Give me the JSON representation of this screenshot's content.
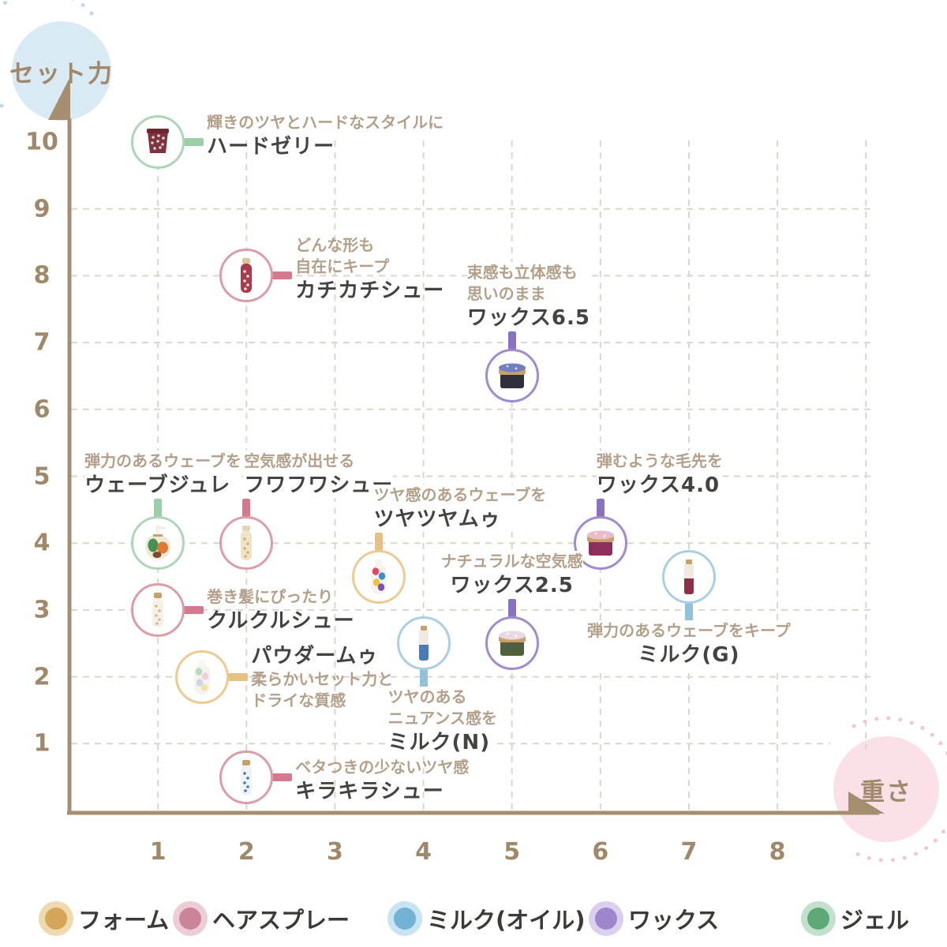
{
  "axes": {
    "y_axis": {
      "label": "セット力",
      "bubble_color": "#daeaf5",
      "dot_color": "#bcdaeb"
    },
    "x_axis": {
      "label": "重さ",
      "bubble_color": "#fbe1e7",
      "dot_color": "#f4c6d2"
    },
    "axis_color": "#a58e70",
    "grid_color": "#ddd5c9",
    "tick_color": "#a0896a"
  },
  "text_colors": {
    "desc": "#b3a08a",
    "name": "#454240"
  },
  "categories": {
    "フォーム": {
      "circle": "#ecca92",
      "connector": "#e7c183",
      "legend_dot": "#d5a659",
      "legend_halo": "#efd9ae"
    },
    "ヘアスプレー": {
      "circle": "#dc9dab",
      "connector": "#d5798f",
      "legend_dot": "#cb8398",
      "legend_halo": "#eccdd6"
    },
    "ミルク(オイル)": {
      "circle": "#abcfe2",
      "connector": "#92c2da",
      "legend_dot": "#72b2d3",
      "legend_halo": "#c8e3f2"
    },
    "ワックス": {
      "circle": "#a08bce",
      "connector": "#8a72c3",
      "legend_dot": "#9d86cb",
      "legend_halo": "#dacfee"
    },
    "ジェル": {
      "circle": "#aed5b5",
      "connector": "#9ccfa8",
      "legend_dot": "#5ca876",
      "legend_halo": "#c2e0cb"
    }
  },
  "legend": {
    "items": [
      "フォーム",
      "ヘアスプレー",
      "ミルク(オイル)",
      "ワックス",
      "ジェル"
    ]
  },
  "chart_data": {
    "type": "scatter",
    "xlabel": "重さ",
    "ylabel": "セット力",
    "xlim": [
      0,
      8.5
    ],
    "ylim": [
      0,
      10.5
    ],
    "x_ticks": [
      1,
      2,
      3,
      4,
      5,
      6,
      7,
      8
    ],
    "y_ticks": [
      1,
      2,
      3,
      4,
      5,
      6,
      7,
      8,
      9,
      10
    ],
    "grid": "dashed",
    "legend_position": "bottom",
    "points": [
      {
        "name": "ハードゼリー",
        "desc": [
          "輝きのツヤとハードなスタイルに"
        ],
        "category": "ジェル",
        "x": 1,
        "y": 10,
        "label": {
          "side": "right",
          "dy": -8
        },
        "icon": {
          "type": "tub",
          "body": "#82333b",
          "rim": "#6d262e",
          "dots": "#c9d9e6"
        }
      },
      {
        "name": "カチカチシュー",
        "desc": [
          "どんな形も",
          "自在にキープ"
        ],
        "category": "ヘアスプレー",
        "x": 2,
        "y": 8,
        "label": {
          "side": "right",
          "dy": -8
        },
        "icon": {
          "type": "spray",
          "body": "#a93b4c",
          "pattern": "#f0e3e3",
          "cap": "#d9c49c"
        }
      },
      {
        "name": "ワックス6.5",
        "desc": [
          "束感も立体感も",
          "思いのまま"
        ],
        "category": "ワックス",
        "x": 5,
        "y": 6.5,
        "label": {
          "side": "top",
          "align": "left",
          "dx": -57
        },
        "icon": {
          "type": "jar",
          "body": "#30303c",
          "lid": "#c9a06b",
          "top": "#6f7fc0"
        }
      },
      {
        "name": "ウェーブジュレ",
        "desc": [
          "弾力のあるウェーブを"
        ],
        "category": "ジェル",
        "x": 1,
        "y": 4,
        "label": {
          "side": "top",
          "align": "left",
          "dx": -93
        },
        "icon": {
          "type": "pump",
          "body": "#df7a33",
          "accent": "#47904f",
          "cap": "#f2f0ea"
        }
      },
      {
        "name": "フワフワシュー",
        "desc": [
          "空気感が出せる"
        ],
        "category": "ヘアスプレー",
        "x": 2,
        "y": 4,
        "label": {
          "side": "top",
          "align": "left",
          "dx": -3
        },
        "icon": {
          "type": "spray",
          "body": "#efe3c8",
          "pattern": "#d8b269",
          "cap": "#e4d5b4"
        }
      },
      {
        "name": "ツヤツヤムゥ",
        "desc": [
          "ツヤ感のあるウェーブを"
        ],
        "category": "フォーム",
        "x": 3.5,
        "y": 3.5,
        "label": {
          "side": "top",
          "align": "left",
          "dx": -7
        },
        "icon": {
          "type": "bottle",
          "patches": [
            "#dd4a66",
            "#3f8fd0",
            "#efc13f",
            "#7a52a8"
          ],
          "cap": "#f4f4f2"
        }
      },
      {
        "name": "ワックス4.0",
        "desc": [
          "弾むような毛先を"
        ],
        "category": "ワックス",
        "x": 6,
        "y": 4,
        "label": {
          "side": "top",
          "align": "left",
          "dx": -5
        },
        "icon": {
          "type": "jar",
          "body": "#8d2f5d",
          "lid": "#c9a06b",
          "top": "#e9bccb"
        }
      },
      {
        "name": "クルクルシュー",
        "desc": [
          "巻き髪にぴったり"
        ],
        "category": "ヘアスプレー",
        "x": 1,
        "y": 3,
        "label": {
          "side": "right",
          "dy": 0
        },
        "icon": {
          "type": "spray",
          "body": "#f4f1ea",
          "pattern": "#dfb876",
          "cap": "#c9a06b"
        }
      },
      {
        "name": "ミルク(G)",
        "desc": [
          "弾力のあるウェーブをキープ"
        ],
        "category": "ミルク(オイル)",
        "x": 7,
        "y": 3.5,
        "label": {
          "side": "bottom",
          "align": "center",
          "dx": 0
        },
        "icon": {
          "type": "milk",
          "top": "#f1ebdf",
          "bottom": "#8e3048",
          "cap": "#c9a06b"
        }
      },
      {
        "name": "パウダームゥ",
        "desc": [
          "柔らかいセット力と",
          "ドライな質感"
        ],
        "category": "フォーム",
        "x": 1.5,
        "y": 2,
        "label": {
          "side": "right",
          "dy": 0,
          "name_first": true
        },
        "icon": {
          "type": "bottle",
          "patches": [
            "#b8d8be",
            "#f2cfd8",
            "#c5d7ee",
            "#efe3a8"
          ],
          "cap": "#f7f7f5"
        }
      },
      {
        "name": "ミルク(N)",
        "desc": [
          "ツヤのある",
          "ニュアンス感を"
        ],
        "category": "ミルク(オイル)",
        "x": 4,
        "y": 2.5,
        "label": {
          "side": "bottom",
          "align": "left",
          "dx": -45
        },
        "icon": {
          "type": "milk",
          "top": "#f1ebdf",
          "bottom": "#4a7ab8",
          "cap": "#c9a06b"
        }
      },
      {
        "name": "ワックス2.5",
        "desc": [
          "ナチュラルな空気感"
        ],
        "category": "ワックス",
        "x": 5,
        "y": 2.5,
        "label": {
          "side": "top",
          "align": "center",
          "dx": 0
        },
        "icon": {
          "type": "jar",
          "body": "#50603c",
          "lid": "#c9a06b",
          "top": "#e9d9e2"
        }
      },
      {
        "name": "キラキラシュー",
        "desc": [
          "ベタつきの少ないツヤ感"
        ],
        "category": "ヘアスプレー",
        "x": 2,
        "y": 0.5,
        "label": {
          "side": "right",
          "dy": 4
        },
        "icon": {
          "type": "spray",
          "body": "#eff3f7",
          "pattern": "#3e79bf",
          "cap": "#c9a06b"
        }
      }
    ]
  }
}
